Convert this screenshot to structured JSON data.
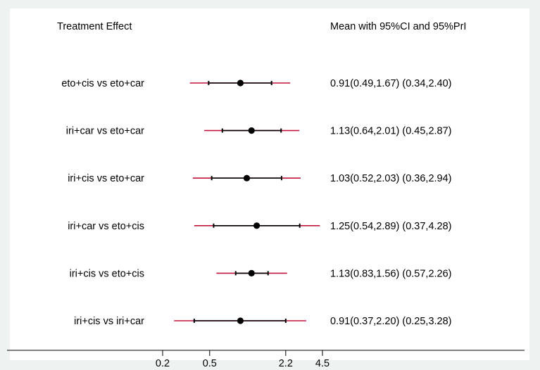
{
  "chart_data": {
    "type": "forest",
    "left_header": "Treatment Effect",
    "right_header": "Mean with 95%CI and 95%PrI",
    "x_scale": "log",
    "x_ticks": [
      0.2,
      0.5,
      2.2,
      4.5
    ],
    "x_tick_labels": [
      "0.2",
      "0.5",
      "2.2",
      "4.5"
    ],
    "x_range": [
      0.2,
      4.5
    ],
    "rows": [
      {
        "label": "eto+cis vs eto+car",
        "mean": 0.91,
        "ci": [
          0.49,
          1.67
        ],
        "pri": [
          0.34,
          2.4
        ],
        "text": "0.91(0.49,1.67) (0.34,2.40)"
      },
      {
        "label": "iri+car vs eto+car",
        "mean": 1.13,
        "ci": [
          0.64,
          2.01
        ],
        "pri": [
          0.45,
          2.87
        ],
        "text": "1.13(0.64,2.01) (0.45,2.87)"
      },
      {
        "label": "iri+cis vs eto+car",
        "mean": 1.03,
        "ci": [
          0.52,
          2.03
        ],
        "pri": [
          0.36,
          2.94
        ],
        "text": "1.03(0.52,2.03) (0.36,2.94)"
      },
      {
        "label": "iri+car vs eto+cis",
        "mean": 1.25,
        "ci": [
          0.54,
          2.89
        ],
        "pri": [
          0.37,
          4.28
        ],
        "text": "1.25(0.54,2.89) (0.37,4.28)"
      },
      {
        "label": "iri+cis vs eto+cis",
        "mean": 1.13,
        "ci": [
          0.83,
          1.56
        ],
        "pri": [
          0.57,
          2.26
        ],
        "text": "1.13(0.83,1.56) (0.57,2.26)"
      },
      {
        "label": "iri+cis vs iri+car",
        "mean": 0.91,
        "ci": [
          0.37,
          2.2
        ],
        "pri": [
          0.25,
          3.28
        ],
        "text": "0.91(0.37,2.20) (0.25,3.28)"
      }
    ],
    "colors": {
      "ci": "#000000",
      "pri": "#c0143c",
      "mean": "#000000"
    }
  }
}
